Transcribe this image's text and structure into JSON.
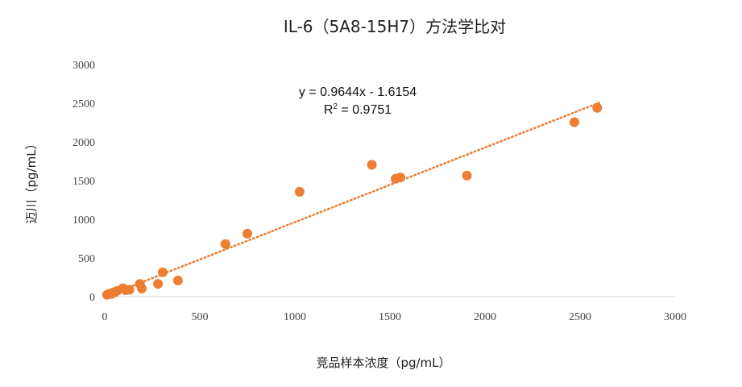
{
  "chart_data": {
    "type": "scatter",
    "title": "IL-6（5A8-15H7）方法学比对",
    "xlabel": "竞品样本浓度（pg/mL）",
    "ylabel": "迈川（pg/mL）",
    "xlim": [
      0,
      3000
    ],
    "ylim": [
      0,
      3000
    ],
    "x_ticks": [
      "0",
      "500",
      "1000",
      "1500",
      "2000",
      "2500",
      "3000"
    ],
    "y_ticks": [
      "0",
      "500",
      "1000",
      "1500",
      "2000",
      "2500",
      "3000"
    ],
    "grid": false,
    "legend": "none",
    "color": "#ED7D31",
    "trendline": {
      "type": "linear",
      "slope": 0.9644,
      "intercept": -1.6154,
      "range": [
        90,
        2600
      ],
      "equation": "y = 0.9644x - 1.6154",
      "r2_label": "R",
      "r2_sup": "2",
      "r2_value": " = 0.9751"
    },
    "points": [
      {
        "x": 12,
        "y": 25
      },
      {
        "x": 20,
        "y": 30
      },
      {
        "x": 28,
        "y": 40
      },
      {
        "x": 35,
        "y": 35
      },
      {
        "x": 45,
        "y": 55
      },
      {
        "x": 55,
        "y": 60
      },
      {
        "x": 65,
        "y": 75
      },
      {
        "x": 95,
        "y": 110
      },
      {
        "x": 110,
        "y": 85
      },
      {
        "x": 130,
        "y": 90
      },
      {
        "x": 185,
        "y": 165
      },
      {
        "x": 195,
        "y": 105
      },
      {
        "x": 280,
        "y": 165
      },
      {
        "x": 305,
        "y": 315
      },
      {
        "x": 385,
        "y": 210
      },
      {
        "x": 635,
        "y": 680
      },
      {
        "x": 750,
        "y": 815
      },
      {
        "x": 1025,
        "y": 1355
      },
      {
        "x": 1405,
        "y": 1705
      },
      {
        "x": 1530,
        "y": 1525
      },
      {
        "x": 1555,
        "y": 1540
      },
      {
        "x": 1905,
        "y": 1565
      },
      {
        "x": 2470,
        "y": 2255
      },
      {
        "x": 2590,
        "y": 2440
      }
    ]
  }
}
